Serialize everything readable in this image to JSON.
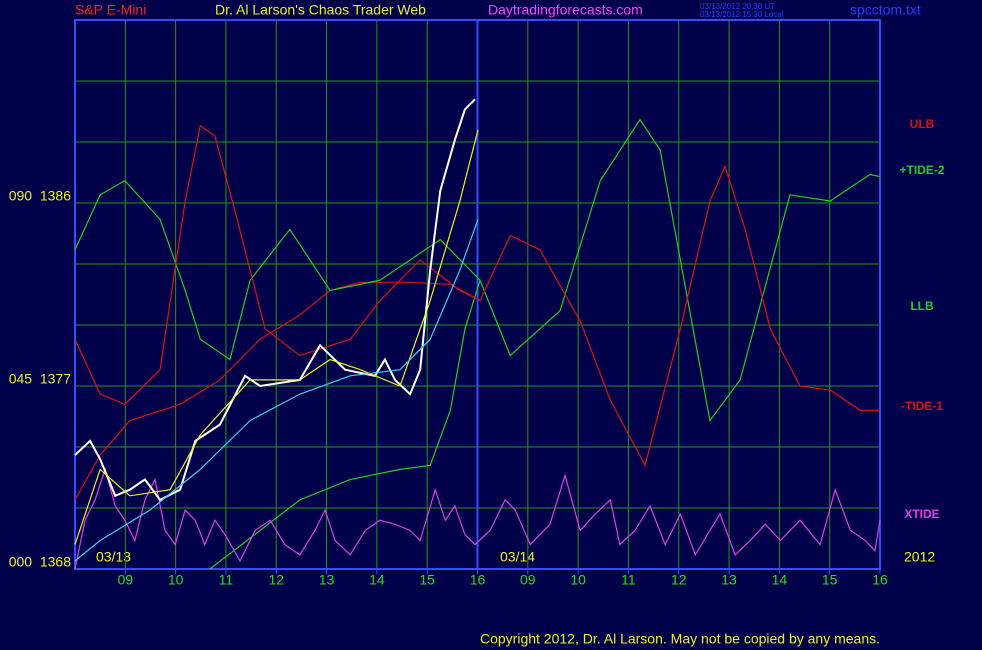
{
  "chart_data": {
    "type": "line",
    "symbol": "S&P E-Mini",
    "title": "Dr. Al Larson's Chaos Trader Web",
    "site": "Daytradingforecasts.com",
    "timestamps": [
      "03/13/2012 20:30 UT",
      "03/13/2012 15:30 Local"
    ],
    "file": "spcctom.txt",
    "copyright": "Copyright 2012, Dr. Al Larson. May not be copied by any means.",
    "dates": [
      "03/13",
      "03/14"
    ],
    "year": "2012",
    "xlim": [
      0,
      16
    ],
    "xticks": [
      {
        "value": 1,
        "label": "09"
      },
      {
        "value": 2,
        "label": "10"
      },
      {
        "value": 3,
        "label": "11"
      },
      {
        "value": 4,
        "label": "12"
      },
      {
        "value": 5,
        "label": "13"
      },
      {
        "value": 6,
        "label": "14"
      },
      {
        "value": 7,
        "label": "15"
      },
      {
        "value": 8,
        "label": "16"
      },
      {
        "value": 9,
        "label": "09"
      },
      {
        "value": 10,
        "label": "10"
      },
      {
        "value": 11,
        "label": "11"
      },
      {
        "value": 12,
        "label": "12"
      },
      {
        "value": 13,
        "label": "13"
      },
      {
        "value": 14,
        "label": "14"
      },
      {
        "value": 15,
        "label": "15"
      },
      {
        "value": 16,
        "label": "16"
      }
    ],
    "day_divider": 8,
    "ylim": [
      1368,
      1395
    ],
    "yticks": [
      {
        "value": 1386,
        "label": "090  1386"
      },
      {
        "value": 1377,
        "label": "045  1377"
      },
      {
        "value": 1368,
        "label": "000  1368"
      }
    ],
    "ygrid": [
      1368,
      1371,
      1374,
      1377,
      1380,
      1383,
      1386,
      1389,
      1392,
      1395
    ],
    "grid": true,
    "series": [
      {
        "name": "ULB",
        "color": "#e01010",
        "x": [
          0,
          0.5,
          1.09,
          2.09,
          2.88,
          3.68,
          4.47,
          5.07,
          5.67,
          6.66,
          7.46,
          8.05
        ],
        "values": [
          1371.4,
          1373.6,
          1375.3,
          1376.1,
          1377.3,
          1379.3,
          1380.5,
          1381.7,
          1382.1,
          1382.1,
          1382.0,
          1381.2
        ]
      },
      {
        "name": "+TIDE-2",
        "color": "#20d020",
        "x": [
          0,
          0.5,
          0.99,
          1.69,
          2.19,
          2.49,
          3.08,
          3.48,
          4.27,
          5.07,
          6.06,
          7.26,
          8.05,
          8.65,
          9.64,
          10.44,
          11.23,
          11.63,
          12.62,
          13.22,
          14.21,
          15.01,
          15.8,
          16
        ],
        "values": [
          1383.7,
          1386.4,
          1387.1,
          1385.2,
          1381.7,
          1379.3,
          1378.3,
          1382.2,
          1384.7,
          1381.7,
          1382.2,
          1384.2,
          1382.2,
          1378.5,
          1380.7,
          1387.1,
          1390.1,
          1388.6,
          1375.3,
          1377.3,
          1386.4,
          1386.1,
          1387.4,
          1387.3
        ]
      },
      {
        "name": "LLB",
        "color": "#20d020",
        "x": [
          2.68,
          3.68,
          4.47,
          5.47,
          6.46,
          7.06,
          7.46,
          7.75,
          8.05
        ],
        "values": [
          1368.0,
          1369.9,
          1371.4,
          1372.4,
          1372.9,
          1373.1,
          1375.8,
          1379.8,
          1382.2
        ]
      },
      {
        "name": "-TIDE-1",
        "color": "#e01010",
        "x": [
          0,
          0.5,
          0.99,
          1.69,
          2.19,
          2.49,
          2.78,
          3.18,
          3.78,
          4.47,
          5.47,
          6.06,
          6.86,
          7.65,
          8.05,
          8.65,
          9.24,
          10.04,
          10.64,
          11.33,
          12.03,
          12.62,
          12.92,
          13.32,
          13.82,
          14.41,
          15.01,
          15.61,
          16
        ],
        "values": [
          1379.3,
          1376.6,
          1376.1,
          1377.8,
          1386.1,
          1389.8,
          1389.3,
          1385.6,
          1379.8,
          1378.5,
          1379.3,
          1381.2,
          1383.2,
          1381.7,
          1381.2,
          1384.4,
          1383.7,
          1380.2,
          1376.3,
          1373.1,
          1379.8,
          1386.1,
          1387.8,
          1384.7,
          1379.8,
          1377.0,
          1376.8,
          1375.8,
          1375.8
        ]
      },
      {
        "name": "XTIDE",
        "color": "#e040e0",
        "x": [
          0,
          0.2,
          0.4,
          0.6,
          0.8,
          0.99,
          1.19,
          1.39,
          1.59,
          1.79,
          1.99,
          2.19,
          2.39,
          2.58,
          2.78,
          2.98,
          3.28,
          3.58,
          3.88,
          4.17,
          4.47,
          4.77,
          4.97,
          5.17,
          5.47,
          5.77,
          6.06,
          6.36,
          6.66,
          6.86,
          7.16,
          7.36,
          7.55,
          7.75,
          7.95,
          8.25,
          8.55,
          8.75,
          9.05,
          9.44,
          9.74,
          10.04,
          10.34,
          10.64,
          10.83,
          11.13,
          11.43,
          11.73,
          12.03,
          12.33,
          12.62,
          12.82,
          13.12,
          13.42,
          13.72,
          14.02,
          14.41,
          14.81,
          15.11,
          15.41,
          15.71,
          15.9,
          16
        ],
        "values": [
          1368.0,
          1370.4,
          1371.4,
          1372.9,
          1371.1,
          1370.4,
          1369.4,
          1371.4,
          1372.4,
          1369.9,
          1369.2,
          1370.9,
          1370.4,
          1369.2,
          1370.4,
          1369.7,
          1368.4,
          1369.9,
          1370.4,
          1369.2,
          1368.7,
          1369.9,
          1370.9,
          1369.4,
          1368.7,
          1369.9,
          1370.4,
          1370.2,
          1369.9,
          1369.4,
          1371.9,
          1370.4,
          1371.1,
          1369.7,
          1369.2,
          1369.9,
          1371.4,
          1370.9,
          1369.2,
          1370.2,
          1372.6,
          1369.9,
          1370.7,
          1371.4,
          1369.2,
          1369.9,
          1371.1,
          1369.2,
          1370.7,
          1368.7,
          1369.9,
          1370.7,
          1368.7,
          1369.4,
          1370.2,
          1369.4,
          1370.4,
          1369.2,
          1371.9,
          1369.9,
          1369.4,
          1368.9,
          1370.4
        ]
      },
      {
        "color": "#ffffff",
        "x": [
          0,
          0.3,
          0.5,
          0.8,
          1.09,
          1.39,
          1.69,
          2.09,
          2.39,
          2.88,
          3.38,
          3.68,
          4.47,
          4.87,
          5.37,
          5.96,
          6.16,
          6.36,
          6.66,
          6.86,
          7.06,
          7.26,
          7.55,
          7.75,
          7.95
        ],
        "values": [
          1373.6,
          1374.3,
          1373.4,
          1371.6,
          1371.9,
          1372.4,
          1371.4,
          1371.9,
          1374.3,
          1375.1,
          1377.5,
          1377.0,
          1377.3,
          1379.0,
          1377.8,
          1377.5,
          1378.3,
          1377.3,
          1376.6,
          1377.8,
          1382.7,
          1386.6,
          1389.1,
          1390.6,
          1391.1
        ]
      },
      {
        "color": "#f0f020",
        "x": [
          0,
          0.5,
          1.09,
          1.89,
          2.49,
          3.48,
          4.47,
          5.07,
          5.67,
          6.46,
          7.06,
          7.65,
          8.01
        ],
        "values": [
          1369.2,
          1372.9,
          1371.6,
          1371.9,
          1374.6,
          1377.3,
          1377.3,
          1378.3,
          1377.8,
          1377.0,
          1381.2,
          1386.1,
          1389.6
        ]
      },
      {
        "color": "#40d0f0",
        "x": [
          0,
          0.5,
          1.49,
          2.49,
          3.48,
          4.47,
          5.47,
          6.46,
          7.06,
          7.65,
          8.01
        ],
        "values": [
          1368.4,
          1369.4,
          1370.9,
          1372.9,
          1375.3,
          1376.6,
          1377.5,
          1377.8,
          1379.3,
          1382.7,
          1385.2
        ]
      }
    ]
  }
}
